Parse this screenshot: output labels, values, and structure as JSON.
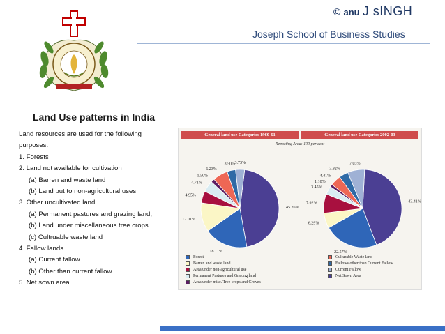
{
  "header": {
    "copyright_symbol": "©",
    "author_first": "anu",
    "author_last": "J sINGH",
    "school": "Joseph School of Business Studies"
  },
  "slide": {
    "title": "Land Use patterns in India",
    "lines": [
      {
        "text": "Land resources are used for the following",
        "indent": false
      },
      {
        "text": "purposes:",
        "indent": false
      },
      {
        "text": "1. Forests",
        "indent": false
      },
      {
        "text": "2. Land not available for cultivation",
        "indent": false
      },
      {
        "text": "(a) Barren and waste land",
        "indent": true
      },
      {
        "text": "(b) Land put to non-agricultural uses",
        "indent": true
      },
      {
        "text": "3. Other uncultivated land",
        "indent": false
      },
      {
        "text": "(a) Permanent pastures and grazing land,",
        "indent": true
      },
      {
        "text": "(b) Land under miscellaneous tree crops",
        "indent": true
      },
      {
        "text": "(c) Cultruable waste land",
        "indent": true
      },
      {
        "text": "4. Fallow lands",
        "indent": false
      },
      {
        "text": "(a) Current fallow",
        "indent": true
      },
      {
        "text": "(b) Other than current fallow",
        "indent": true
      },
      {
        "text": "5. Net sown area",
        "indent": false
      }
    ]
  },
  "colors": {
    "header_bar": "#cf4c4c",
    "footer_bar": "#3a70c6",
    "categories": {
      "forest": "#2f66b8",
      "barren": "#fbf6c6",
      "non_agri": "#a8103f",
      "pastures": "#d9ecf2",
      "tree_crops": "#5b1d62",
      "culturable_waste": "#ee6755",
      "other_fallow": "#2f6aa6",
      "current_fallow": "#9fb1d5",
      "net_sown": "#4b3f93"
    }
  },
  "chart_data": [
    {
      "type": "pie",
      "title": "General land use Categories 1960-61",
      "subtitle": "Reporting Area: 100 per cent",
      "slices": [
        {
          "key": "net_sown",
          "label": "Net Sown Area",
          "value": 45.26,
          "text": "45.26%"
        },
        {
          "key": "forest",
          "label": "Forest",
          "value": 18.11,
          "text": "18.11%"
        },
        {
          "key": "barren",
          "label": "Barren and waste land",
          "value": 12.01,
          "text": "12.01%"
        },
        {
          "key": "non_agri",
          "label": "Area under non-agricultural use",
          "value": 4.95,
          "text": "4.95%"
        },
        {
          "key": "pastures",
          "label": "Permanent Pastures and Grazing land",
          "value": 4.71,
          "text": "4.71%"
        },
        {
          "key": "tree_crops",
          "label": "Area under misc. Tree crops and Groves",
          "value": 1.5,
          "text": "1.50%"
        },
        {
          "key": "culturable_waste",
          "label": "Culturable Waste land",
          "value": 6.23,
          "text": "6.23%"
        },
        {
          "key": "other_fallow",
          "label": "Fallows other than Current Fallow",
          "value": 3.5,
          "text": "3.50%"
        },
        {
          "key": "current_fallow",
          "label": "Current Fallow",
          "value": 3.73,
          "text": "3.73%"
        }
      ]
    },
    {
      "type": "pie",
      "title": "General land use Categories 2002-03",
      "slices": [
        {
          "key": "net_sown",
          "label": "Net Sown Area",
          "value": 43.41,
          "text": "43.41%"
        },
        {
          "key": "forest",
          "label": "Forest",
          "value": 22.57,
          "text": "22.57%"
        },
        {
          "key": "barren",
          "label": "Barren and waste land",
          "value": 6.29,
          "text": "6.29%"
        },
        {
          "key": "non_agri",
          "label": "Area under non-agricultural use",
          "value": 7.92,
          "text": "7.92%"
        },
        {
          "key": "pastures",
          "label": "Permanent Pastures and Grazing land",
          "value": 3.45,
          "text": "3.45%"
        },
        {
          "key": "tree_crops",
          "label": "Area under misc. Tree crops and Groves",
          "value": 1.1,
          "text": "1.10%"
        },
        {
          "key": "culturable_waste",
          "label": "Culturable Waste land",
          "value": 4.41,
          "text": "4.41%"
        },
        {
          "key": "other_fallow",
          "label": "Fallows other than Current Fallow",
          "value": 3.82,
          "text": "3.82%"
        },
        {
          "key": "current_fallow",
          "label": "Current Fallow",
          "value": 7.03,
          "text": "7.03%"
        }
      ]
    }
  ],
  "legend": {
    "left": [
      {
        "key": "forest",
        "label": "Forest"
      },
      {
        "key": "barren",
        "label": "Barren and waste land"
      },
      {
        "key": "non_agri",
        "label": "Area under non-agricultural use"
      },
      {
        "key": "pastures",
        "label": "Permanent Pastures and Grazing land"
      },
      {
        "key": "tree_crops",
        "label": "Area under misc. Tree crops and Groves"
      }
    ],
    "right": [
      {
        "key": "culturable_waste",
        "label": "Culturable Waste land"
      },
      {
        "key": "other_fallow",
        "label": "Fallows other than Current Fallow"
      },
      {
        "key": "current_fallow",
        "label": "Current Fallow"
      },
      {
        "key": "net_sown",
        "label": "Net Sown Area"
      }
    ]
  }
}
